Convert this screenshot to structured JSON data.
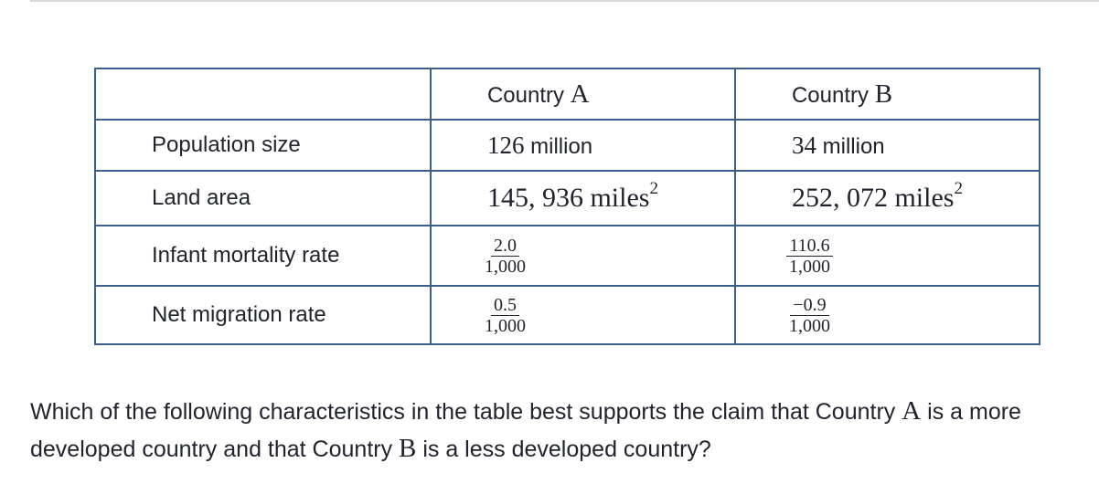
{
  "table": {
    "header": {
      "blank": "",
      "country_a_prefix": "Country",
      "country_a_letter": "A",
      "country_b_prefix": "Country",
      "country_b_letter": "B"
    },
    "rows": [
      {
        "label": "Population size",
        "a_number": "126",
        "a_unit": "million",
        "b_number": "34",
        "b_unit": "million"
      },
      {
        "label": "Land area",
        "a_value": "145, 936 miles",
        "a_exp": "2",
        "b_value": "252, 072 miles",
        "b_exp": "2"
      },
      {
        "label": "Infant mortality rate",
        "a_num": "2.0",
        "a_den": "1,000",
        "b_num": "110.6",
        "b_den": "1,000"
      },
      {
        "label": "Net migration rate",
        "a_num": "0.5",
        "a_den": "1,000",
        "b_num": "−0.9",
        "b_den": "1,000"
      }
    ]
  },
  "question": {
    "part1": "Which of the following characteristics in the table best supports the claim that Country ",
    "letter1": "A",
    "part2": " is a more developed country and that Country ",
    "letter2": "B",
    "part3": " is a less developed country?"
  }
}
